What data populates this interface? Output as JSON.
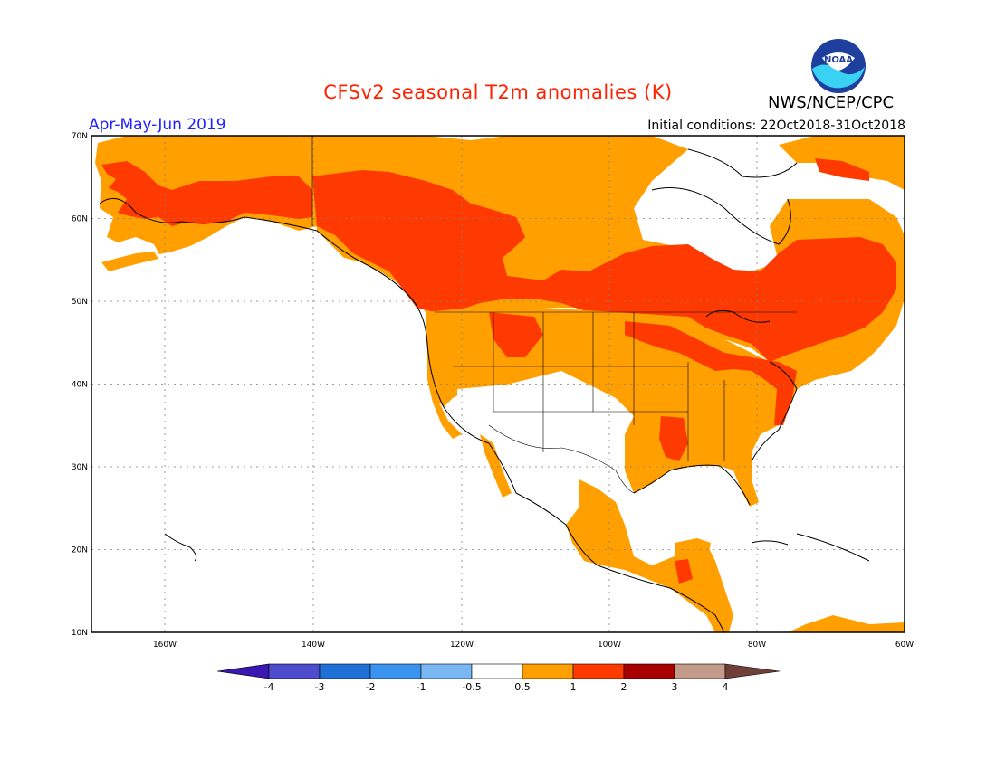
{
  "header": {
    "title": "CFSv2 seasonal T2m anomalies (K)",
    "period": "Apr-May-Jun 2019",
    "initial_conditions": "Initial conditions: 22Oct2018-31Oct2018",
    "agency": "NWS/NCEP/CPC",
    "logo_text": "NOAA"
  },
  "map": {
    "lat_labels": [
      "70N",
      "60N",
      "50N",
      "40N",
      "30N",
      "20N",
      "10N"
    ],
    "lon_labels": [
      "160W",
      "140W",
      "120W",
      "100W",
      "80W",
      "60W"
    ]
  },
  "colorbar": {
    "labels": [
      "-4",
      "-3",
      "-2",
      "-1",
      "-0.5",
      "0.5",
      "1",
      "2",
      "3",
      "4"
    ],
    "colors": [
      "#3a17b0",
      "#4c4ccc",
      "#1e6fd6",
      "#3a93ee",
      "#7ab8f4",
      "#ffffff",
      "#ff9f00",
      "#ff3a00",
      "#a80000",
      "#c49a8a",
      "#704038"
    ],
    "anomaly_colors": {
      "0.5_to_1": "#ff9f00",
      "1_to_2": "#ff3a00",
      "2_to_3": "#a80000"
    }
  }
}
